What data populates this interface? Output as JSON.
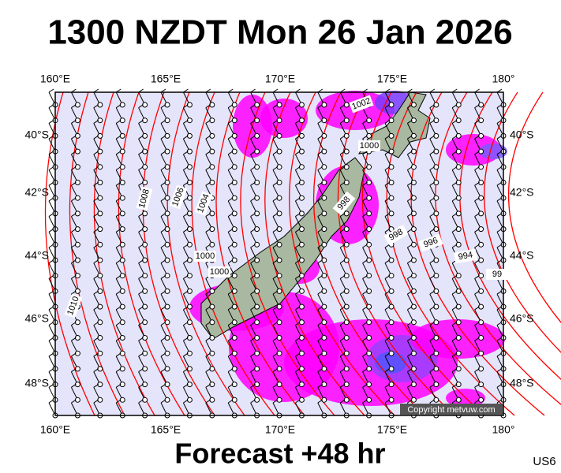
{
  "header": {
    "title": "1300 NZDT Mon 26 Jan 2026"
  },
  "map": {
    "lon_labels": [
      "160°E",
      "165°E",
      "170°E",
      "175°E",
      "180°"
    ],
    "lat_labels": [
      "40°S",
      "42°S",
      "44°S",
      "46°S",
      "48°S"
    ],
    "isobar_labels": [
      "1002",
      "1000",
      "998",
      "1008",
      "1006",
      "1004",
      "1000",
      "1000",
      "998",
      "996",
      "994",
      "99",
      "1010"
    ],
    "copyright": "Copyright metvuw.com"
  },
  "footer": {
    "forecast": "Forecast +48 hr",
    "code": "US6"
  }
}
